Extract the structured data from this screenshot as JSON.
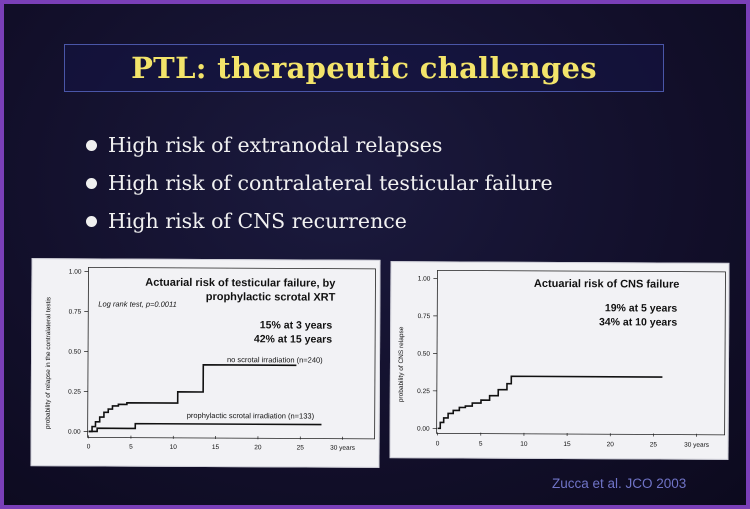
{
  "slide": {
    "title": "PTL: therapeutic challenges",
    "bullets": [
      "High risk of extranodal relapses",
      "High risk of contralateral testicular failure",
      "High risk of CNS recurrence"
    ],
    "citation": "Zucca et al. JCO 2003"
  },
  "colors": {
    "title": "#f3e46a",
    "bullet_text": "#f1f1f1",
    "citation": "#6f73c6",
    "frame_border": "#7a3fb8"
  },
  "chart_data": [
    {
      "type": "line",
      "title": "Actuarial risk of testicular failure, by prophylactic scrotal XRT",
      "title_lines": [
        "Actuarial risk of testicular failure, by",
        "prophylactic scrotal XRT"
      ],
      "ylabel": "probability of relapse in the contralateral testis",
      "xlabel": "",
      "x_ticks": [
        "0",
        "5",
        "10",
        "15",
        "20",
        "25",
        "30 years"
      ],
      "y_ticks": [
        "0.00",
        "0.25",
        "0.50",
        "0.75",
        "1.00"
      ],
      "xlim": [
        0,
        30
      ],
      "ylim": [
        0,
        1
      ],
      "annotations": [
        "Log rank test, p=0.0011",
        "15% at 3 years",
        "42% at 15 years"
      ],
      "series": [
        {
          "name": "no scrotal irradiation (n=240)",
          "x": [
            0,
            0.4,
            0.8,
            1.3,
            1.8,
            2.3,
            2.8,
            3.5,
            4.5,
            10.5,
            13.5,
            24.5
          ],
          "y": [
            0,
            0.03,
            0.06,
            0.09,
            0.12,
            0.14,
            0.16,
            0.17,
            0.18,
            0.25,
            0.42,
            0.42
          ]
        },
        {
          "name": "prophylactic scrotal irradiation (n=133)",
          "x": [
            0,
            1,
            5.5,
            27.5
          ],
          "y": [
            0,
            0.02,
            0.05,
            0.05
          ]
        }
      ]
    },
    {
      "type": "line",
      "title": "Actuarial risk of CNS failure",
      "ylabel": "probability of CNS relapse",
      "xlabel": "",
      "x_ticks": [
        "0",
        "5",
        "10",
        "15",
        "20",
        "25",
        "30 years"
      ],
      "y_ticks": [
        "0.00",
        "0.25",
        "0.50",
        "0.75",
        "1.00"
      ],
      "xlim": [
        0,
        30
      ],
      "ylim": [
        0,
        1
      ],
      "annotations": [
        "19% at 5 years",
        "34% at 10 years"
      ],
      "series": [
        {
          "x": [
            0,
            0.3,
            0.7,
            1.2,
            1.8,
            2.5,
            3.2,
            4,
            5,
            6,
            7,
            8,
            8.5,
            26
          ],
          "y": [
            0,
            0.04,
            0.07,
            0.1,
            0.12,
            0.14,
            0.15,
            0.17,
            0.19,
            0.22,
            0.26,
            0.3,
            0.35,
            0.35
          ]
        }
      ]
    }
  ]
}
